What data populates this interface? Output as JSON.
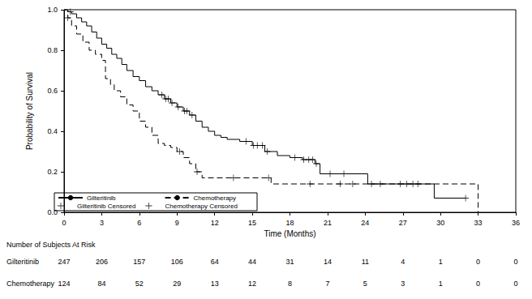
{
  "chart_data": {
    "type": "line",
    "x_label": "Time (Months)",
    "y_label": "Probability of Survival",
    "xlim": [
      0,
      36
    ],
    "xticks": [
      0,
      3,
      6,
      9,
      12,
      15,
      18,
      21,
      24,
      27,
      30,
      33,
      36
    ],
    "ylim": [
      0,
      1
    ],
    "yticks": [
      {
        "value": 0,
        "label": "0.0"
      },
      {
        "value": 0.2,
        "label": "0.2"
      },
      {
        "value": 0.4,
        "label": "0.4"
      },
      {
        "value": 0.6,
        "label": "0.6"
      },
      {
        "value": 0.8,
        "label": "0.8"
      },
      {
        "value": 1,
        "label": "1.0"
      }
    ],
    "grid": false,
    "legend": "lower left",
    "series": [
      {
        "name": "Gilteritinib",
        "type": "line",
        "line_style": "solid",
        "color": "#000000",
        "x": [
          0,
          0.3,
          0.6,
          1,
          1.4,
          1.8,
          2.2,
          2.6,
          3,
          3.4,
          3.8,
          4.2,
          4.6,
          5,
          5.5,
          6,
          6.5,
          7,
          7.5,
          8,
          8.5,
          9,
          9.5,
          10,
          10.5,
          11,
          11.5,
          12,
          12.5,
          13,
          14,
          15,
          16,
          17,
          18,
          19,
          20,
          20.4,
          24.2,
          29.5,
          32
        ],
        "values": [
          1.0,
          0.99,
          0.98,
          0.96,
          0.94,
          0.92,
          0.89,
          0.86,
          0.83,
          0.81,
          0.78,
          0.76,
          0.73,
          0.7,
          0.67,
          0.65,
          0.62,
          0.6,
          0.58,
          0.56,
          0.54,
          0.52,
          0.5,
          0.48,
          0.45,
          0.42,
          0.4,
          0.38,
          0.37,
          0.36,
          0.35,
          0.33,
          0.3,
          0.28,
          0.27,
          0.26,
          0.24,
          0.19,
          0.14,
          0.07,
          0.07
        ]
      },
      {
        "name": "Chemotherapy",
        "type": "line",
        "line_style": "dashed",
        "color": "#000000",
        "x": [
          0,
          0.3,
          0.6,
          1,
          1.5,
          2,
          2.5,
          3,
          3.3,
          3.7,
          4,
          4.5,
          5,
          5.5,
          6,
          6.5,
          7,
          7.5,
          8,
          8.5,
          9,
          9.5,
          10,
          10.5,
          11,
          16.5,
          33
        ],
        "values": [
          1.0,
          0.96,
          0.92,
          0.88,
          0.84,
          0.8,
          0.78,
          0.75,
          0.66,
          0.63,
          0.6,
          0.57,
          0.53,
          0.5,
          0.45,
          0.42,
          0.38,
          0.34,
          0.33,
          0.32,
          0.3,
          0.27,
          0.24,
          0.2,
          0.17,
          0.14,
          0.0
        ]
      },
      {
        "name": "Gilteritinib Censored",
        "type": "scatter",
        "marker": "plus",
        "color": "#000000",
        "x": [
          0.5,
          7.8,
          8.1,
          8.3,
          8.6,
          9.1,
          9.6,
          9.8,
          10.2,
          14.5,
          15.1,
          15.4,
          15.8,
          16.2,
          18.4,
          19.1,
          19.5,
          19.8,
          20.1,
          21.2,
          22.3,
          24.5,
          25.2,
          26.8,
          27.3,
          27.8,
          28.2,
          32
        ],
        "values": [
          0.99,
          0.58,
          0.56,
          0.56,
          0.54,
          0.52,
          0.5,
          0.5,
          0.48,
          0.35,
          0.33,
          0.33,
          0.33,
          0.3,
          0.27,
          0.26,
          0.26,
          0.26,
          0.24,
          0.19,
          0.19,
          0.14,
          0.14,
          0.14,
          0.14,
          0.14,
          0.14,
          0.07
        ]
      },
      {
        "name": "Chemotherapy Censored",
        "type": "scatter",
        "marker": "plus",
        "color": "#000000",
        "x": [
          0.3,
          9.2,
          10.6,
          13.5,
          16.3,
          19.6,
          22,
          23
        ],
        "values": [
          0.96,
          0.3,
          0.2,
          0.17,
          0.17,
          0.14,
          0.14,
          0.14
        ]
      }
    ],
    "at_risk": {
      "title": "Number of Subjects At Risk",
      "x": [
        0,
        3,
        6,
        9,
        12,
        15,
        18,
        21,
        24,
        27,
        30,
        33,
        36
      ],
      "rows": [
        {
          "name": "Gilteritinib",
          "values": [
            247,
            206,
            157,
            106,
            64,
            44,
            31,
            14,
            11,
            4,
            1,
            0,
            0
          ]
        },
        {
          "name": "Chemotherapy",
          "values": [
            124,
            84,
            52,
            29,
            13,
            12,
            8,
            7,
            5,
            3,
            1,
            0,
            0
          ]
        }
      ]
    }
  }
}
